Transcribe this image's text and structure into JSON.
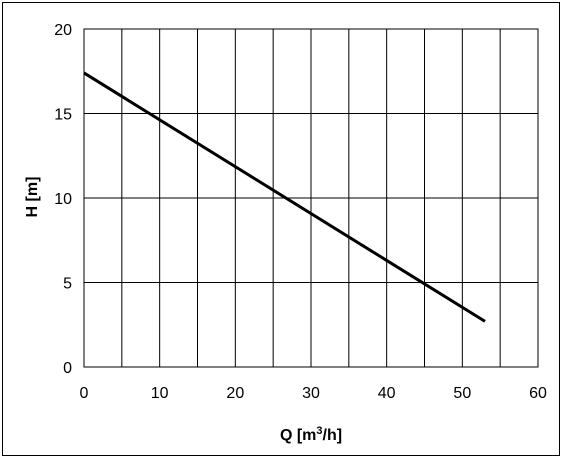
{
  "chart_data": {
    "type": "line",
    "title": "",
    "xlabel": "Q [m",
    "xlabel_sup": "3",
    "xlabel_end": "/h]",
    "ylabel": "H [m]",
    "xlim": [
      0,
      60
    ],
    "ylim": [
      0,
      20
    ],
    "x_ticks": [
      0,
      10,
      20,
      30,
      40,
      50,
      60
    ],
    "y_ticks": [
      0,
      5,
      10,
      15,
      20
    ],
    "x_gridlines": [
      0,
      5,
      10,
      15,
      20,
      25,
      30,
      35,
      40,
      45,
      50,
      55,
      60
    ],
    "y_gridlines": [
      0,
      5,
      10,
      15,
      20
    ],
    "grid": true,
    "line_color": "#000000",
    "series": [
      {
        "x": [
          0,
          53
        ],
        "y": [
          17.4,
          2.7
        ]
      }
    ]
  }
}
